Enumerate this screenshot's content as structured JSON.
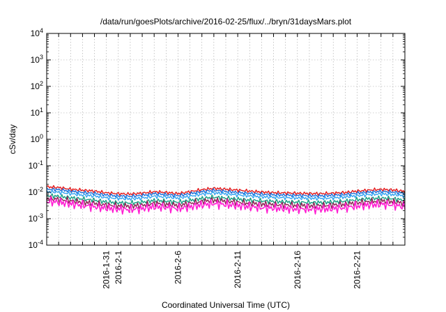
{
  "chart_data": {
    "type": "line",
    "title": "/data/run/goesPlots/archive/2016-02-25/flux/../bryn/31daysMars.plot",
    "xlabel": "Coordinated Universal Time (UTC)",
    "ylabel": "cSv/day",
    "y_scale": "log",
    "ylim": [
      0.0001,
      10000
    ],
    "y_ticks": [
      {
        "value": 0.0001,
        "base": "10",
        "exp": "-4"
      },
      {
        "value": 0.001,
        "base": "10",
        "exp": "-3"
      },
      {
        "value": 0.01,
        "base": "10",
        "exp": "-2"
      },
      {
        "value": 0.1,
        "base": "10",
        "exp": "-1"
      },
      {
        "value": 1,
        "base": "10",
        "exp": "0"
      },
      {
        "value": 10,
        "base": "10",
        "exp": "1"
      },
      {
        "value": 100,
        "base": "10",
        "exp": "2"
      },
      {
        "value": 1000,
        "base": "10",
        "exp": "3"
      },
      {
        "value": 10000,
        "base": "10",
        "exp": "4"
      }
    ],
    "xlim": [
      "2016-01-26",
      "2016-02-25"
    ],
    "x_ticks": [
      "2016-1-31",
      "2016-2-1",
      "2016-2-6",
      "2016-2-11",
      "2016-2-16",
      "2016-2-21"
    ],
    "x_tick_dates": [
      "2016-01-31",
      "2016-02-01",
      "2016-02-06",
      "2016-02-11",
      "2016-02-16",
      "2016-02-21"
    ],
    "grid": true,
    "x": [
      "2016-01-26",
      "2016-01-27",
      "2016-01-28",
      "2016-01-29",
      "2016-01-30",
      "2016-01-31",
      "2016-02-01",
      "2016-02-02",
      "2016-02-03",
      "2016-02-04",
      "2016-02-05",
      "2016-02-06",
      "2016-02-07",
      "2016-02-08",
      "2016-02-09",
      "2016-02-10",
      "2016-02-11",
      "2016-02-12",
      "2016-02-13",
      "2016-02-14",
      "2016-02-15",
      "2016-02-16",
      "2016-02-17",
      "2016-02-18",
      "2016-02-19",
      "2016-02-20",
      "2016-02-21",
      "2016-02-22",
      "2016-02-23",
      "2016-02-24",
      "2016-02-25"
    ],
    "series": [
      {
        "color": "#e41a1c",
        "values": [
          0.016,
          0.015,
          0.013,
          0.012,
          0.011,
          0.0095,
          0.0088,
          0.0085,
          0.0092,
          0.0105,
          0.0098,
          0.0088,
          0.0105,
          0.0125,
          0.014,
          0.013,
          0.012,
          0.011,
          0.0102,
          0.0096,
          0.0094,
          0.0091,
          0.0089,
          0.0088,
          0.0092,
          0.0098,
          0.011,
          0.012,
          0.0128,
          0.0122,
          0.0108
        ]
      },
      {
        "color": "#1e6fd9",
        "values": [
          0.013,
          0.0125,
          0.011,
          0.0098,
          0.009,
          0.0078,
          0.0072,
          0.007,
          0.0076,
          0.0088,
          0.0082,
          0.0074,
          0.0088,
          0.0105,
          0.0118,
          0.0108,
          0.0098,
          0.009,
          0.0084,
          0.008,
          0.0078,
          0.0076,
          0.0074,
          0.0073,
          0.0077,
          0.0082,
          0.0092,
          0.0101,
          0.0107,
          0.0102,
          0.009
        ]
      },
      {
        "color": "#33a4f2",
        "values": [
          0.0105,
          0.01,
          0.0088,
          0.0078,
          0.0072,
          0.0062,
          0.0058,
          0.0056,
          0.006,
          0.007,
          0.0066,
          0.006,
          0.007,
          0.0084,
          0.0094,
          0.0087,
          0.0079,
          0.0072,
          0.0067,
          0.0064,
          0.0062,
          0.006,
          0.0059,
          0.0058,
          0.0061,
          0.0066,
          0.0074,
          0.0081,
          0.0086,
          0.0082,
          0.0072
        ]
      },
      {
        "color": "#16a085",
        "values": [
          0.0075,
          0.007,
          0.0062,
          0.0055,
          0.005,
          0.0043,
          0.004,
          0.0039,
          0.0042,
          0.0049,
          0.0046,
          0.0042,
          0.0049,
          0.0058,
          0.0065,
          0.006,
          0.0055,
          0.005,
          0.0047,
          0.0045,
          0.0043,
          0.0042,
          0.0041,
          0.0041,
          0.0043,
          0.0046,
          0.0052,
          0.0057,
          0.006,
          0.0057,
          0.005
        ]
      },
      {
        "color": "#8b2252",
        "values": [
          0.0058,
          0.0054,
          0.0048,
          0.0042,
          0.0038,
          0.0033,
          0.0031,
          0.003,
          0.0032,
          0.0038,
          0.0036,
          0.0032,
          0.0038,
          0.0045,
          0.005,
          0.0046,
          0.0042,
          0.0038,
          0.0036,
          0.0034,
          0.0033,
          0.0032,
          0.0031,
          0.0031,
          0.0033,
          0.0035,
          0.004,
          0.0044,
          0.0047,
          0.0044,
          0.0038
        ]
      },
      {
        "color": "#ff1ed2",
        "values": [
          0.0045,
          0.0042,
          0.0036,
          0.0032,
          0.0028,
          0.0025,
          0.0023,
          0.0022,
          0.0024,
          0.0028,
          0.0027,
          0.0024,
          0.0028,
          0.0033,
          0.0037,
          0.0034,
          0.0031,
          0.0028,
          0.0026,
          0.0025,
          0.0024,
          0.0023,
          0.0023,
          0.0023,
          0.0024,
          0.0026,
          0.003,
          0.0033,
          0.0035,
          0.0033,
          0.0028
        ]
      }
    ]
  }
}
